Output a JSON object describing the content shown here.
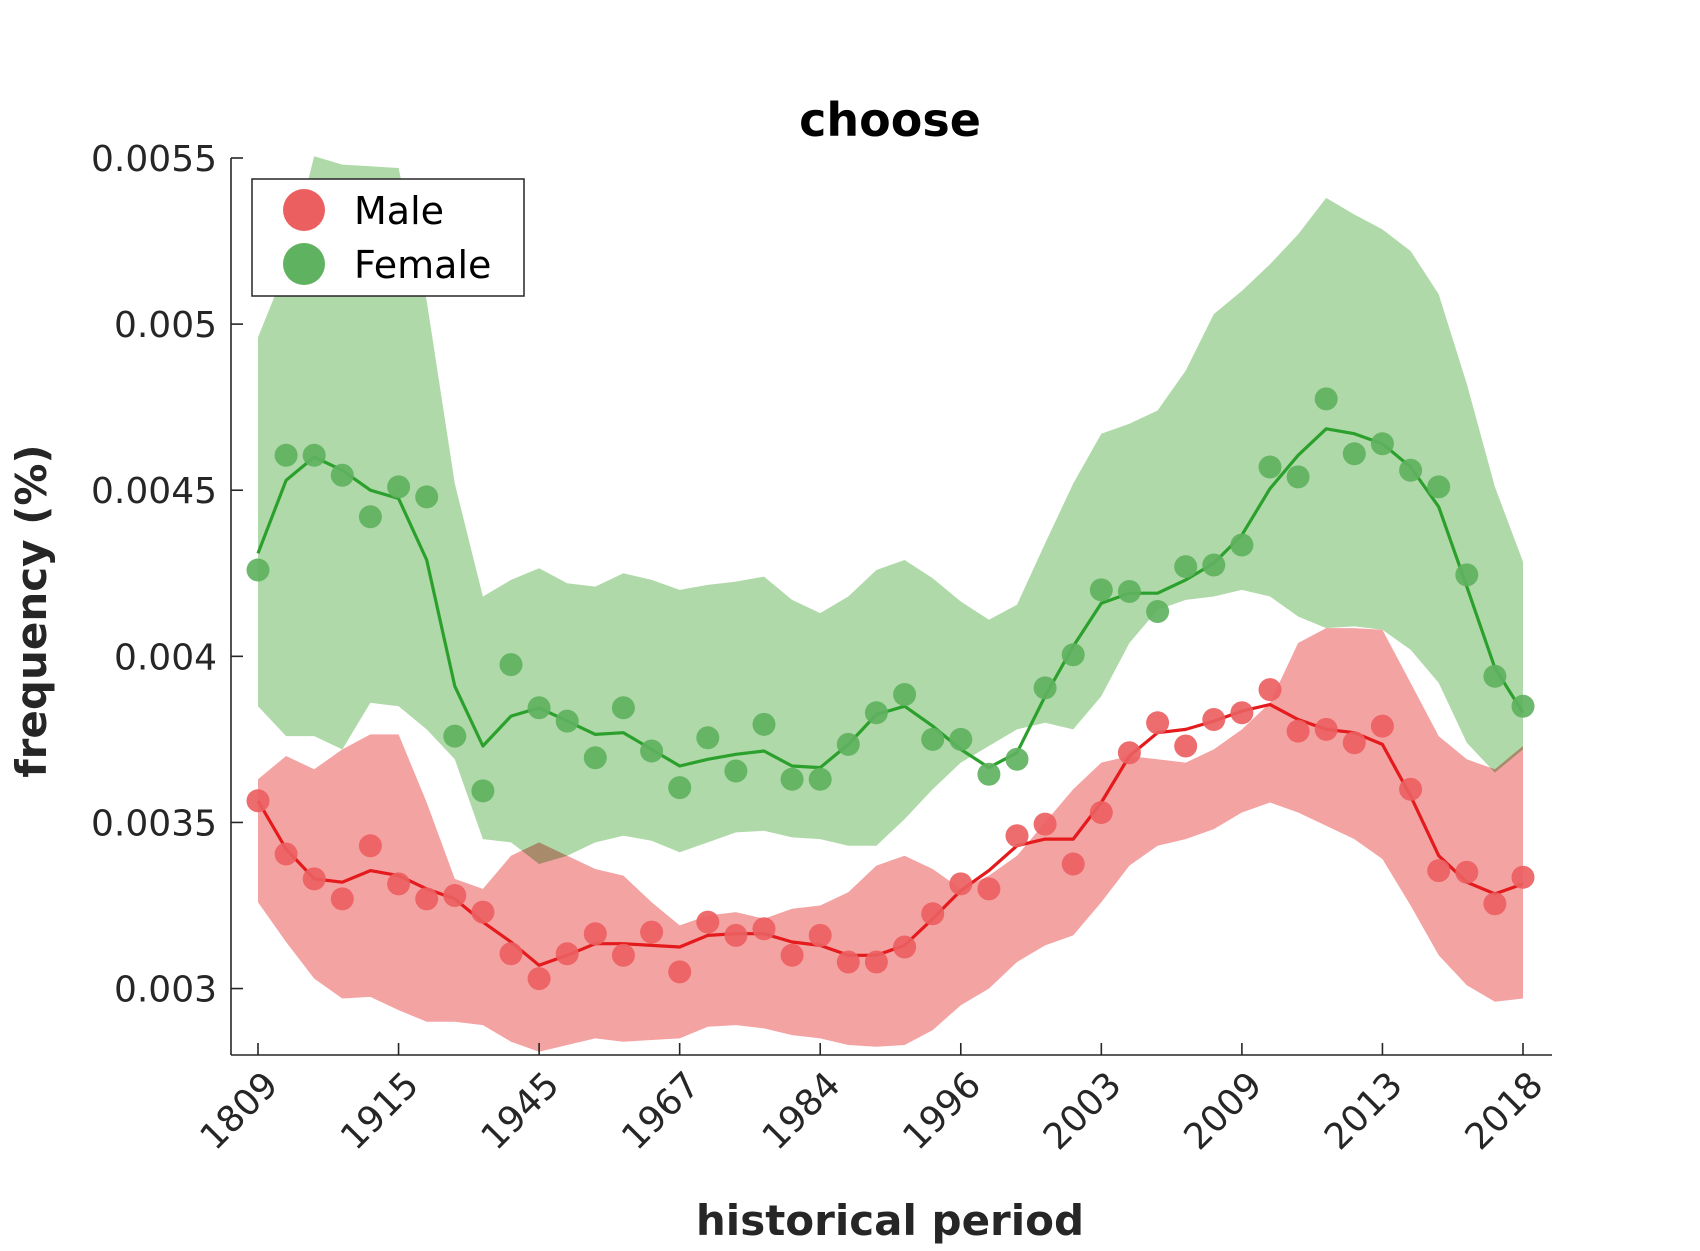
{
  "chart_data": {
    "type": "line",
    "title": "choose",
    "xlabel": "historical period",
    "ylabel": "frequency (%)",
    "x_tick_labels": [
      "1809",
      "1915",
      "1945",
      "1967",
      "1984",
      "1996",
      "2003",
      "2009",
      "2013",
      "2018"
    ],
    "y_tick_labels": [
      "0.003",
      "0.0035",
      "0.004",
      "0.0045",
      "0.005",
      "0.0055"
    ],
    "y_ticks": [
      0.003,
      0.0035,
      0.004,
      0.0045,
      0.005,
      0.0055
    ],
    "ylim": [
      0.0028,
      0.0055
    ],
    "grid": false,
    "legend_position": "top-left",
    "series": [
      {
        "name": "Male",
        "color": "#e41a1c",
        "marker_color": "#ec5f61",
        "band_color": "#f4a3a3",
        "points": [
          0.003565,
          0.003405,
          0.00333,
          0.00327,
          0.00343,
          0.003315,
          0.00327,
          0.00328,
          0.00323,
          0.003105,
          0.00303,
          0.003105,
          0.003165,
          0.0031,
          0.00317,
          0.00305,
          0.0032,
          0.00316,
          0.00318,
          0.0031,
          0.00316,
          0.00308,
          0.00308,
          0.003125,
          0.003225,
          0.003315,
          0.0033,
          0.00346,
          0.003495,
          0.003375,
          0.00353,
          0.00371,
          0.0038,
          0.00373,
          0.00381,
          0.00383,
          0.0039,
          0.003775,
          0.00378,
          0.00374,
          0.00379,
          0.0036,
          0.003355,
          0.00335,
          0.003255,
          0.003335
        ],
        "trend": [
          0.003565,
          0.00342,
          0.00333,
          0.00332,
          0.003355,
          0.00334,
          0.0033,
          0.00327,
          0.0032,
          0.00314,
          0.00307,
          0.0031,
          0.003135,
          0.003135,
          0.00313,
          0.003125,
          0.00316,
          0.003165,
          0.003165,
          0.00314,
          0.00313,
          0.0031,
          0.0031,
          0.00313,
          0.00321,
          0.003295,
          0.003355,
          0.00343,
          0.00345,
          0.00345,
          0.00356,
          0.0037,
          0.00377,
          0.00378,
          0.003805,
          0.003835,
          0.003855,
          0.00381,
          0.00378,
          0.00377,
          0.003735,
          0.00358,
          0.0034,
          0.00332,
          0.003285,
          0.003315
        ],
        "band_upper": [
          0.00363,
          0.0037,
          0.00366,
          0.00372,
          0.003765,
          0.003765,
          0.00356,
          0.00333,
          0.0033,
          0.0034,
          0.00344,
          0.0034,
          0.00336,
          0.00334,
          0.00326,
          0.00319,
          0.00322,
          0.00323,
          0.00321,
          0.00324,
          0.00325,
          0.00329,
          0.00337,
          0.0034,
          0.00336,
          0.0033,
          0.00334,
          0.0034,
          0.0035,
          0.0036,
          0.00368,
          0.0037,
          0.00369,
          0.00368,
          0.00372,
          0.00378,
          0.00386,
          0.00404,
          0.004085,
          0.004085,
          0.00408,
          0.00392,
          0.00376,
          0.00369,
          0.00366,
          0.00373
        ],
        "band_lower": [
          0.00326,
          0.00314,
          0.00303,
          0.00297,
          0.002975,
          0.002935,
          0.0029,
          0.0029,
          0.00289,
          0.00284,
          0.00281,
          0.00283,
          0.00285,
          0.00284,
          0.002845,
          0.00285,
          0.002885,
          0.00289,
          0.00288,
          0.00286,
          0.00285,
          0.00283,
          0.002825,
          0.00283,
          0.002875,
          0.00295,
          0.003,
          0.00308,
          0.00313,
          0.00316,
          0.00326,
          0.00337,
          0.00343,
          0.00345,
          0.00348,
          0.00353,
          0.00356,
          0.00353,
          0.00349,
          0.00345,
          0.00339,
          0.00325,
          0.0031,
          0.00301,
          0.00296,
          0.00297
        ]
      },
      {
        "name": "Female",
        "color": "#2ca02c",
        "marker_color": "#5fb25f",
        "band_color": "#afd9a8",
        "points": [
          0.00426,
          0.004605,
          0.004605,
          0.004545,
          0.00442,
          0.00451,
          0.00448,
          0.00376,
          0.003595,
          0.003975,
          0.003845,
          0.003805,
          0.003695,
          0.003845,
          0.003715,
          0.003605,
          0.003755,
          0.003655,
          0.003795,
          0.00363,
          0.00363,
          0.003735,
          0.00383,
          0.003885,
          0.00375,
          0.00375,
          0.003645,
          0.00369,
          0.003905,
          0.004005,
          0.0042,
          0.004195,
          0.004135,
          0.00427,
          0.004275,
          0.004335,
          0.00457,
          0.00454,
          0.004775,
          0.00461,
          0.00464,
          0.00456,
          0.00451,
          0.004245,
          0.00394,
          0.00385
        ],
        "trend": [
          0.00431,
          0.00453,
          0.0046,
          0.00456,
          0.0045,
          0.004475,
          0.00429,
          0.00391,
          0.00373,
          0.00382,
          0.003845,
          0.003805,
          0.003765,
          0.00377,
          0.00372,
          0.00367,
          0.00369,
          0.003705,
          0.003715,
          0.00367,
          0.003665,
          0.003735,
          0.003825,
          0.00385,
          0.00379,
          0.00372,
          0.003665,
          0.00371,
          0.00388,
          0.00403,
          0.00416,
          0.00419,
          0.00419,
          0.00423,
          0.00428,
          0.004365,
          0.004505,
          0.004605,
          0.004685,
          0.00467,
          0.00464,
          0.00457,
          0.00445,
          0.00421,
          0.003965,
          0.00383
        ],
        "band_upper": [
          0.00496,
          0.00517,
          0.005505,
          0.00548,
          0.005475,
          0.00547,
          0.00507,
          0.00452,
          0.00418,
          0.00423,
          0.004265,
          0.00422,
          0.00421,
          0.00425,
          0.00423,
          0.0042,
          0.004215,
          0.004225,
          0.00424,
          0.00417,
          0.00413,
          0.00418,
          0.00426,
          0.00429,
          0.004235,
          0.004165,
          0.00411,
          0.004155,
          0.00434,
          0.00452,
          0.00467,
          0.0047,
          0.00474,
          0.00486,
          0.00503,
          0.0051,
          0.00518,
          0.00527,
          0.00538,
          0.00533,
          0.005285,
          0.00522,
          0.00509,
          0.00482,
          0.00451,
          0.004285
        ],
        "band_lower": [
          0.00385,
          0.00376,
          0.00376,
          0.00372,
          0.00386,
          0.00385,
          0.00378,
          0.00369,
          0.00345,
          0.00344,
          0.003375,
          0.0034,
          0.00344,
          0.00346,
          0.003445,
          0.00341,
          0.00344,
          0.00347,
          0.003475,
          0.003455,
          0.00345,
          0.00343,
          0.00343,
          0.00351,
          0.0036,
          0.00368,
          0.00373,
          0.00378,
          0.0038,
          0.00378,
          0.00388,
          0.00404,
          0.00414,
          0.00417,
          0.00418,
          0.0042,
          0.00418,
          0.00412,
          0.004085,
          0.00409,
          0.00408,
          0.00402,
          0.00392,
          0.00374,
          0.00365,
          0.00372
        ]
      }
    ]
  }
}
